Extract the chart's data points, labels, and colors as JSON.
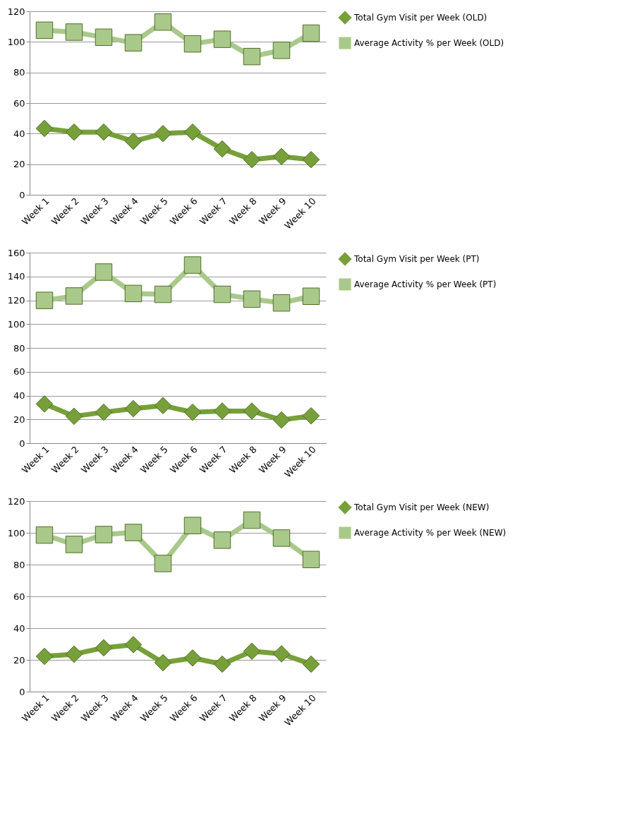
{
  "chart_data": [
    {
      "type": "line",
      "categories": [
        "Week 1",
        "Week 2",
        "Week 3",
        "Week 4",
        "Week 5",
        "Week 6",
        "Week 7",
        "Week 8",
        "Week 9",
        "Week 10"
      ],
      "ylim": [
        0,
        120
      ],
      "yticks": [
        0,
        20,
        40,
        60,
        80,
        100,
        120
      ],
      "grid": "y",
      "legend": "right",
      "series": [
        {
          "name": "Total Gym Visit per Week (OLD)",
          "color": "#77a03a",
          "marker": "diamond",
          "values": [
            43.4,
            41,
            41,
            35,
            40,
            41,
            30,
            23,
            25,
            23
          ]
        },
        {
          "name": "Average Activity % per Week (OLD)",
          "color": "#a9c98a",
          "marker": "square",
          "values": [
            107.6,
            106.4,
            103,
            99.4,
            113,
            98.7,
            101.7,
            90.4,
            94.5,
            105.7
          ]
        }
      ]
    },
    {
      "type": "line",
      "categories": [
        "Week 1",
        "Week 2",
        "Week 3",
        "Week 4",
        "Week 5",
        "Week 6",
        "Week 7",
        "Week 8",
        "Week 9",
        "Week 10"
      ],
      "ylim": [
        0,
        160
      ],
      "yticks": [
        0,
        20,
        40,
        60,
        80,
        100,
        120,
        140,
        160
      ],
      "grid": "y",
      "legend": "right",
      "series": [
        {
          "name": "Total Gym Visit per Week (PT)",
          "color": "#77a03a",
          "marker": "diamond",
          "values": [
            33,
            22.6,
            26,
            29,
            31.6,
            26,
            27,
            27,
            19.5,
            23
          ]
        },
        {
          "name": "Average Activity % per Week (PT)",
          "color": "#a9c98a",
          "marker": "square",
          "values": [
            119.9,
            123.6,
            143.7,
            125.7,
            125,
            149.6,
            125,
            121,
            117.8,
            123.4
          ]
        }
      ]
    },
    {
      "type": "line",
      "categories": [
        "Week 1",
        "Week 2",
        "Week 3",
        "Week 4",
        "Week 5",
        "Week 6",
        "Week 7",
        "Week 8",
        "Week 9",
        "Week 10"
      ],
      "ylim": [
        0,
        120
      ],
      "yticks": [
        0,
        20,
        40,
        60,
        80,
        100,
        120
      ],
      "grid": "y",
      "legend": "right",
      "series": [
        {
          "name": "Total Gym Visit per Week (NEW)",
          "color": "#77a03a",
          "marker": "diamond",
          "values": [
            22.2,
            23.6,
            27.6,
            29.6,
            18.2,
            21.2,
            17.3,
            25.4,
            23.8,
            17.3
          ]
        },
        {
          "name": "Average Activity % per Week (NEW)",
          "color": "#a9c98a",
          "marker": "square",
          "values": [
            98.6,
            92.7,
            98.9,
            100.2,
            80.7,
            104.6,
            95.4,
            108,
            96.7,
            83.2
          ]
        }
      ]
    }
  ]
}
